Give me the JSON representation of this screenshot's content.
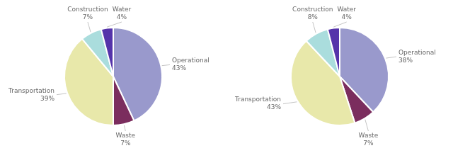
{
  "chart_data": [
    {
      "type": "pie",
      "categories": [
        "Operational",
        "Waste",
        "Transportation",
        "Construction",
        "Water"
      ],
      "values": [
        43,
        7,
        39,
        7,
        4
      ],
      "value_labels": [
        "43%",
        "7%",
        "39%",
        "7%",
        "4%"
      ],
      "colors": [
        "#9999cc",
        "#7b2d5e",
        "#e8e8aa",
        "#aadddd",
        "#5533aa"
      ],
      "data_labels": true
    },
    {
      "type": "pie",
      "categories": [
        "Operational",
        "Waste",
        "Transportation",
        "Construction",
        "Water"
      ],
      "values": [
        38,
        7,
        43,
        8,
        4
      ],
      "value_labels": [
        "38%",
        "7%",
        "43%",
        "8%",
        "4%"
      ],
      "colors": [
        "#9999cc",
        "#7b2d5e",
        "#e8e8aa",
        "#aadddd",
        "#5533aa"
      ],
      "data_labels": true
    }
  ]
}
